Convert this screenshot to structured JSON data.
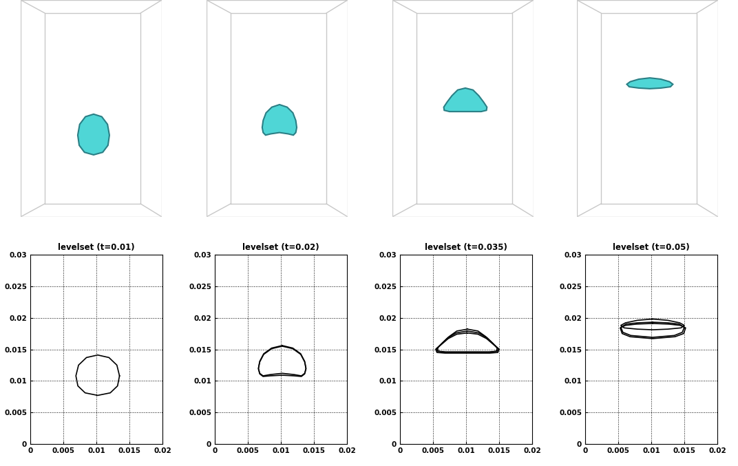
{
  "chart_data": [
    {
      "type": "line",
      "title": "levelset (t=0.01)",
      "xlim": [
        0,
        0.02
      ],
      "ylim": [
        0,
        0.03
      ],
      "xticks": [
        0,
        0.005,
        0.01,
        0.015,
        0.02
      ],
      "yticks": [
        0,
        0.005,
        0.01,
        0.015,
        0.02,
        0.025,
        0.03
      ],
      "grid": true,
      "series": [
        {
          "color": "#000000",
          "line_style": "solid",
          "x": [
            0.0135,
            0.0131,
            0.0119,
            0.0102,
            0.0085,
            0.0073,
            0.0069,
            0.0072,
            0.0083,
            0.0102,
            0.0121,
            0.0132,
            0.0135
          ],
          "values": [
            0.0108,
            0.0125,
            0.0137,
            0.0141,
            0.0137,
            0.0125,
            0.0108,
            0.0092,
            0.0081,
            0.0077,
            0.0081,
            0.0092,
            0.0108
          ]
        }
      ]
    },
    {
      "type": "line",
      "title": "levelset (t=0.02)",
      "xlim": [
        0,
        0.02
      ],
      "ylim": [
        0,
        0.03
      ],
      "xticks": [
        0,
        0.005,
        0.01,
        0.015,
        0.02
      ],
      "yticks": [
        0,
        0.005,
        0.01,
        0.015,
        0.02,
        0.025,
        0.03
      ],
      "grid": true,
      "series": [
        {
          "color": "#000000",
          "line_style": "solid",
          "x": [
            0.0102,
            0.0118,
            0.013,
            0.0136,
            0.0138,
            0.0136,
            0.0131,
            0.012,
            0.0102,
            0.0084,
            0.0073,
            0.0068,
            0.0066,
            0.0068,
            0.0074,
            0.0086,
            0.0102
          ],
          "values": [
            0.0156,
            0.0152,
            0.0143,
            0.0131,
            0.012,
            0.0112,
            0.0108,
            0.011,
            0.0112,
            0.011,
            0.0108,
            0.0112,
            0.012,
            0.0131,
            0.0143,
            0.0152,
            0.0156
          ]
        },
        {
          "color": "#000000",
          "line_style": "solid",
          "x": [
            0.0102,
            0.0118,
            0.013,
            0.0136,
            0.0138,
            0.0136,
            0.0131,
            0.012,
            0.0102,
            0.0084,
            0.0073,
            0.0068,
            0.0066,
            0.0068,
            0.0074,
            0.0086,
            0.0102
          ],
          "values": [
            0.0155,
            0.0151,
            0.0142,
            0.013,
            0.0119,
            0.0111,
            0.0107,
            0.0108,
            0.0109,
            0.0108,
            0.0107,
            0.0111,
            0.0119,
            0.013,
            0.0142,
            0.0151,
            0.0155
          ]
        }
      ]
    },
    {
      "type": "line",
      "title": "levelset (t=0.035)",
      "xlim": [
        0,
        0.02
      ],
      "ylim": [
        0,
        0.03
      ],
      "xticks": [
        0,
        0.005,
        0.01,
        0.015,
        0.02
      ],
      "yticks": [
        0,
        0.005,
        0.01,
        0.015,
        0.02,
        0.025,
        0.03
      ],
      "grid": true,
      "series": [
        {
          "color": "#000000",
          "line_style": "solid",
          "x": [
            0.0102,
            0.0118,
            0.013,
            0.014,
            0.0147,
            0.0146,
            0.0135,
            0.0102,
            0.0069,
            0.0058,
            0.0057,
            0.0064,
            0.0074,
            0.0086,
            0.0102
          ],
          "values": [
            0.0182,
            0.0179,
            0.017,
            0.016,
            0.0152,
            0.0147,
            0.0145,
            0.0145,
            0.0145,
            0.0147,
            0.0152,
            0.016,
            0.017,
            0.0179,
            0.0182
          ]
        },
        {
          "color": "#000000",
          "line_style": "solid",
          "x": [
            0.0102,
            0.0119,
            0.0132,
            0.0142,
            0.015,
            0.0148,
            0.0136,
            0.0102,
            0.0068,
            0.0056,
            0.0054,
            0.0062,
            0.0072,
            0.0085,
            0.0102
          ],
          "values": [
            0.0179,
            0.0176,
            0.0168,
            0.0158,
            0.015,
            0.0145,
            0.0144,
            0.0144,
            0.0144,
            0.0145,
            0.015,
            0.0158,
            0.0168,
            0.0176,
            0.0179
          ]
        },
        {
          "color": "#000000",
          "line_style": "solid",
          "x": [
            0.0102,
            0.0118,
            0.0131,
            0.0141,
            0.0149,
            0.0147,
            0.0135,
            0.0102,
            0.0069,
            0.0057,
            0.0055,
            0.0063,
            0.0073,
            0.0086,
            0.0102
          ],
          "values": [
            0.0176,
            0.0174,
            0.0167,
            0.0158,
            0.0151,
            0.0147,
            0.0146,
            0.0146,
            0.0146,
            0.0147,
            0.0151,
            0.0158,
            0.0167,
            0.0174,
            0.0176
          ]
        }
      ]
    },
    {
      "type": "line",
      "title": "levelset (t=0.05)",
      "xlim": [
        0,
        0.02
      ],
      "ylim": [
        0,
        0.03
      ],
      "xticks": [
        0,
        0.005,
        0.01,
        0.015,
        0.02
      ],
      "yticks": [
        0,
        0.005,
        0.01,
        0.015,
        0.02,
        0.025,
        0.03
      ],
      "grid": true,
      "series": [
        {
          "color": "#000000",
          "line_style": "solid",
          "x": [
            0.0102,
            0.0125,
            0.0143,
            0.015,
            0.0145,
            0.0125,
            0.0102,
            0.0079,
            0.0059,
            0.0054,
            0.0061,
            0.0079,
            0.0102
          ],
          "values": [
            0.0198,
            0.0196,
            0.0192,
            0.0188,
            0.0184,
            0.0182,
            0.0181,
            0.0182,
            0.0184,
            0.0188,
            0.0192,
            0.0196,
            0.0198
          ]
        },
        {
          "color": "#000000",
          "line_style": "solid",
          "x": [
            0.0102,
            0.0125,
            0.0142,
            0.015,
            0.0147,
            0.0135,
            0.0102,
            0.0069,
            0.0057,
            0.0054,
            0.0062,
            0.0079,
            0.0102
          ],
          "values": [
            0.0193,
            0.0192,
            0.019,
            0.0185,
            0.0177,
            0.0172,
            0.0169,
            0.0172,
            0.0177,
            0.0185,
            0.019,
            0.0192,
            0.0193
          ]
        },
        {
          "color": "#000000",
          "line_style": "solid",
          "x": [
            0.0102,
            0.0126,
            0.0144,
            0.0152,
            0.0149,
            0.0136,
            0.0102,
            0.0068,
            0.0056,
            0.0053,
            0.0061,
            0.0078,
            0.0102
          ],
          "values": [
            0.0191,
            0.019,
            0.0188,
            0.0184,
            0.0175,
            0.017,
            0.0167,
            0.017,
            0.0175,
            0.0184,
            0.0188,
            0.019,
            0.0191
          ]
        }
      ]
    }
  ]
}
